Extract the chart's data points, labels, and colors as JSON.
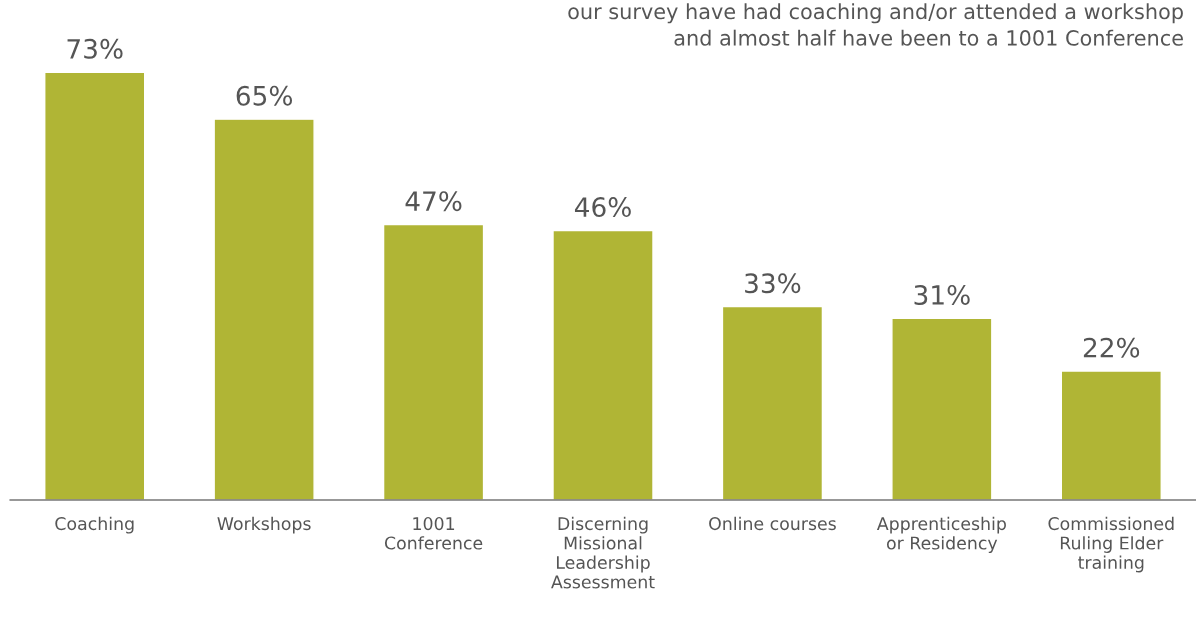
{
  "chart_data": {
    "type": "bar",
    "categories": [
      "Coaching",
      "Workshops",
      "1001\nConference",
      "Discerning\nMissional\nLeadership\nAssessment",
      "Online courses",
      "Apprenticeship\nor Residency",
      "Commissioned\nRuling Elder\ntraining"
    ],
    "values": [
      73,
      65,
      47,
      46,
      33,
      31,
      22
    ],
    "value_labels": [
      "73%",
      "65%",
      "47%",
      "46%",
      "33%",
      "31%",
      "22%"
    ],
    "color": "#b0b535",
    "annotations": [
      "our survey have had coaching and/or attended a workshop\nand almost half have been to a 1001 Conference"
    ],
    "grid": false,
    "legend": false
  }
}
